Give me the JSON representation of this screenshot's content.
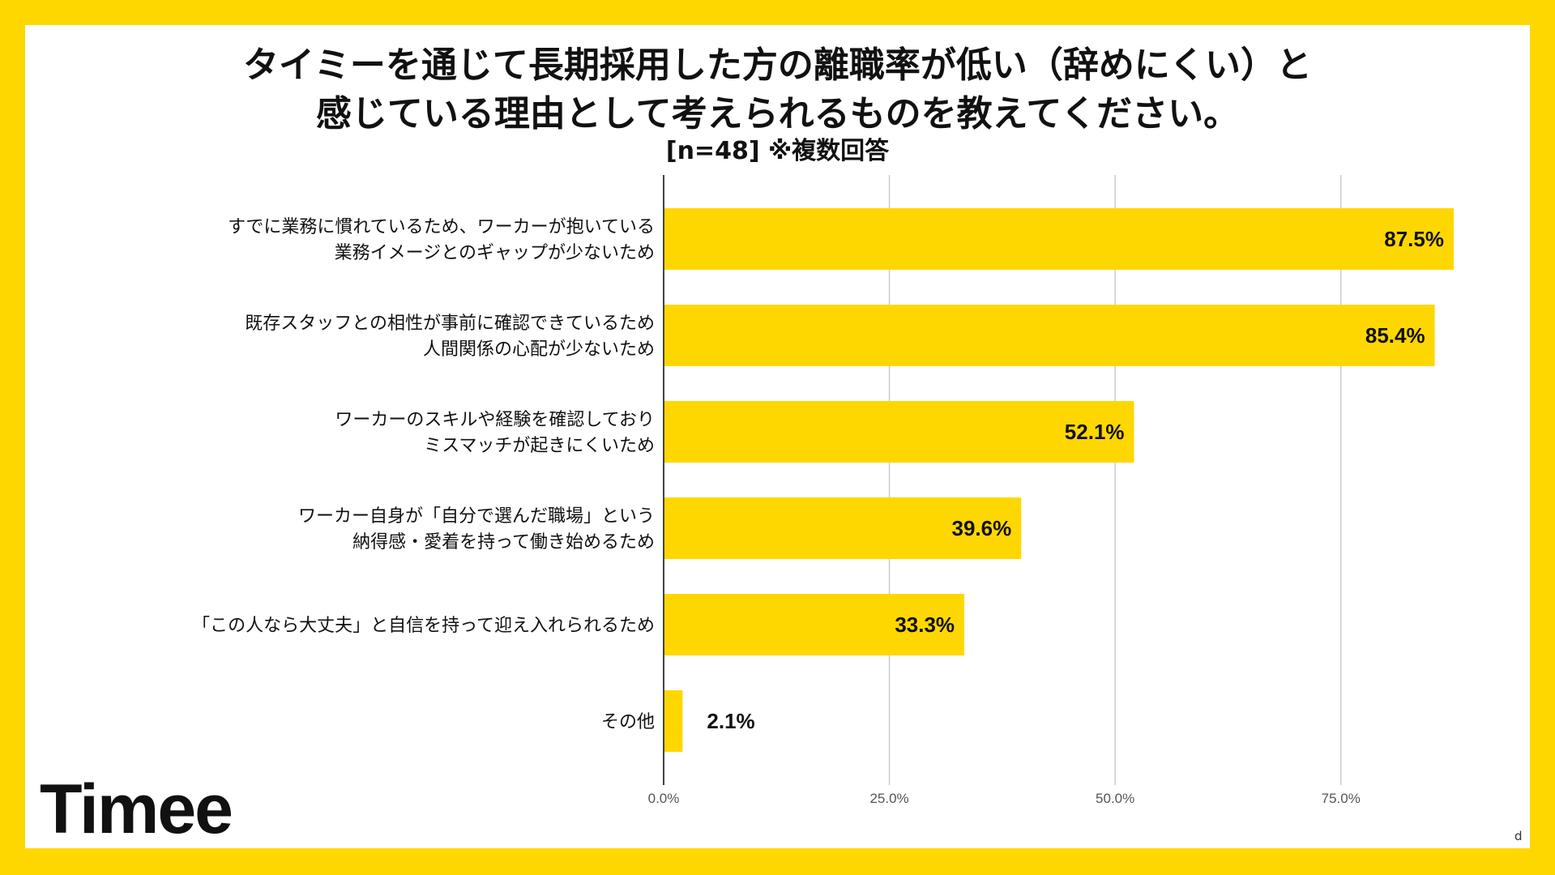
{
  "header": {
    "title_line1": "タイミーを通じて長期採用した方の離職率が低い（辞めにくい）と",
    "title_line2": "感じている理由として考えられるものを教えてください。",
    "subtitle": "[n=48]  ※複数回答"
  },
  "brand": {
    "logo_text": "Timee",
    "footnote": "d"
  },
  "colors": {
    "frame": "#FFD700",
    "bar": "#FFD700",
    "grid": "#cccccc",
    "axis": "#444444",
    "text": "#111111"
  },
  "chart_data": {
    "type": "bar",
    "orientation": "horizontal",
    "categories": [
      [
        "すでに業務に慣れているため、ワーカーが抱いている",
        "業務イメージとのギャップが少ないため"
      ],
      [
        "既存スタッフとの相性が事前に確認できているため",
        "人間関係の心配が少ないため"
      ],
      [
        "ワーカーのスキルや経験を確認しており",
        "ミスマッチが起きにくいため"
      ],
      [
        "ワーカー自身が「自分で選んだ職場」という",
        "納得感・愛着を持って働き始めるため"
      ],
      [
        "「この人なら大丈夫」と自信を持って迎え入れられるため"
      ],
      [
        "その他"
      ]
    ],
    "values": [
      87.5,
      85.4,
      52.1,
      39.6,
      33.3,
      2.1
    ],
    "value_labels": [
      "87.5%",
      "85.4%",
      "52.1%",
      "39.6%",
      "33.3%",
      "2.1%"
    ],
    "xlim": [
      0,
      87.5
    ],
    "xticks": [
      0,
      25,
      50,
      75
    ],
    "xtick_labels": [
      "0.0%",
      "25.0%",
      "50.0%",
      "75.0%"
    ],
    "grid": true,
    "legend": "none"
  }
}
